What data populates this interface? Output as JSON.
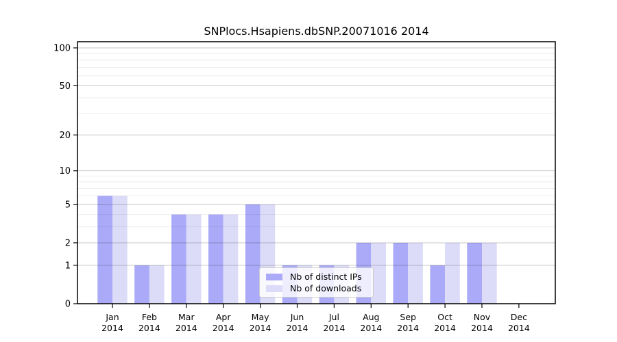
{
  "chart_data": {
    "type": "bar",
    "title": "SNPlocs.Hsapiens.dbSNP.20071016 2014",
    "categories": [
      {
        "month": "Jan",
        "year": "2014"
      },
      {
        "month": "Feb",
        "year": "2014"
      },
      {
        "month": "Mar",
        "year": "2014"
      },
      {
        "month": "Apr",
        "year": "2014"
      },
      {
        "month": "May",
        "year": "2014"
      },
      {
        "month": "Jun",
        "year": "2014"
      },
      {
        "month": "Jul",
        "year": "2014"
      },
      {
        "month": "Aug",
        "year": "2014"
      },
      {
        "month": "Sep",
        "year": "2014"
      },
      {
        "month": "Oct",
        "year": "2014"
      },
      {
        "month": "Nov",
        "year": "2014"
      },
      {
        "month": "Dec",
        "year": "2014"
      }
    ],
    "series": [
      {
        "key": "distinct-ips",
        "name": "Nb of distinct IPs",
        "color": "#aaaaf8",
        "values": [
          6,
          1,
          4,
          4,
          5,
          1,
          1,
          2,
          2,
          1,
          2,
          0
        ]
      },
      {
        "key": "downloads",
        "name": "Nb of downloads",
        "color": "#dcdcf8",
        "values": [
          6,
          1,
          4,
          4,
          5,
          1,
          1,
          2,
          2,
          2,
          2,
          0
        ]
      }
    ],
    "y_axis": {
      "scale": "log1p",
      "ticks": [
        0,
        1,
        2,
        5,
        10,
        20,
        50,
        100
      ],
      "minor_gridlines": [
        3,
        4,
        6,
        7,
        8,
        9,
        30,
        40,
        60,
        70,
        80,
        90
      ],
      "range": [
        0,
        112
      ]
    },
    "x_axis": {
      "label": ""
    },
    "legend_position": "lower center inside",
    "grid": true
  },
  "colors": {
    "background": "#ffffff",
    "axis": "#000000",
    "major_grid": "rgba(0,0,0,0.22)",
    "minor_grid": "rgba(0,0,0,0.07)",
    "tick_text": "#000000"
  }
}
